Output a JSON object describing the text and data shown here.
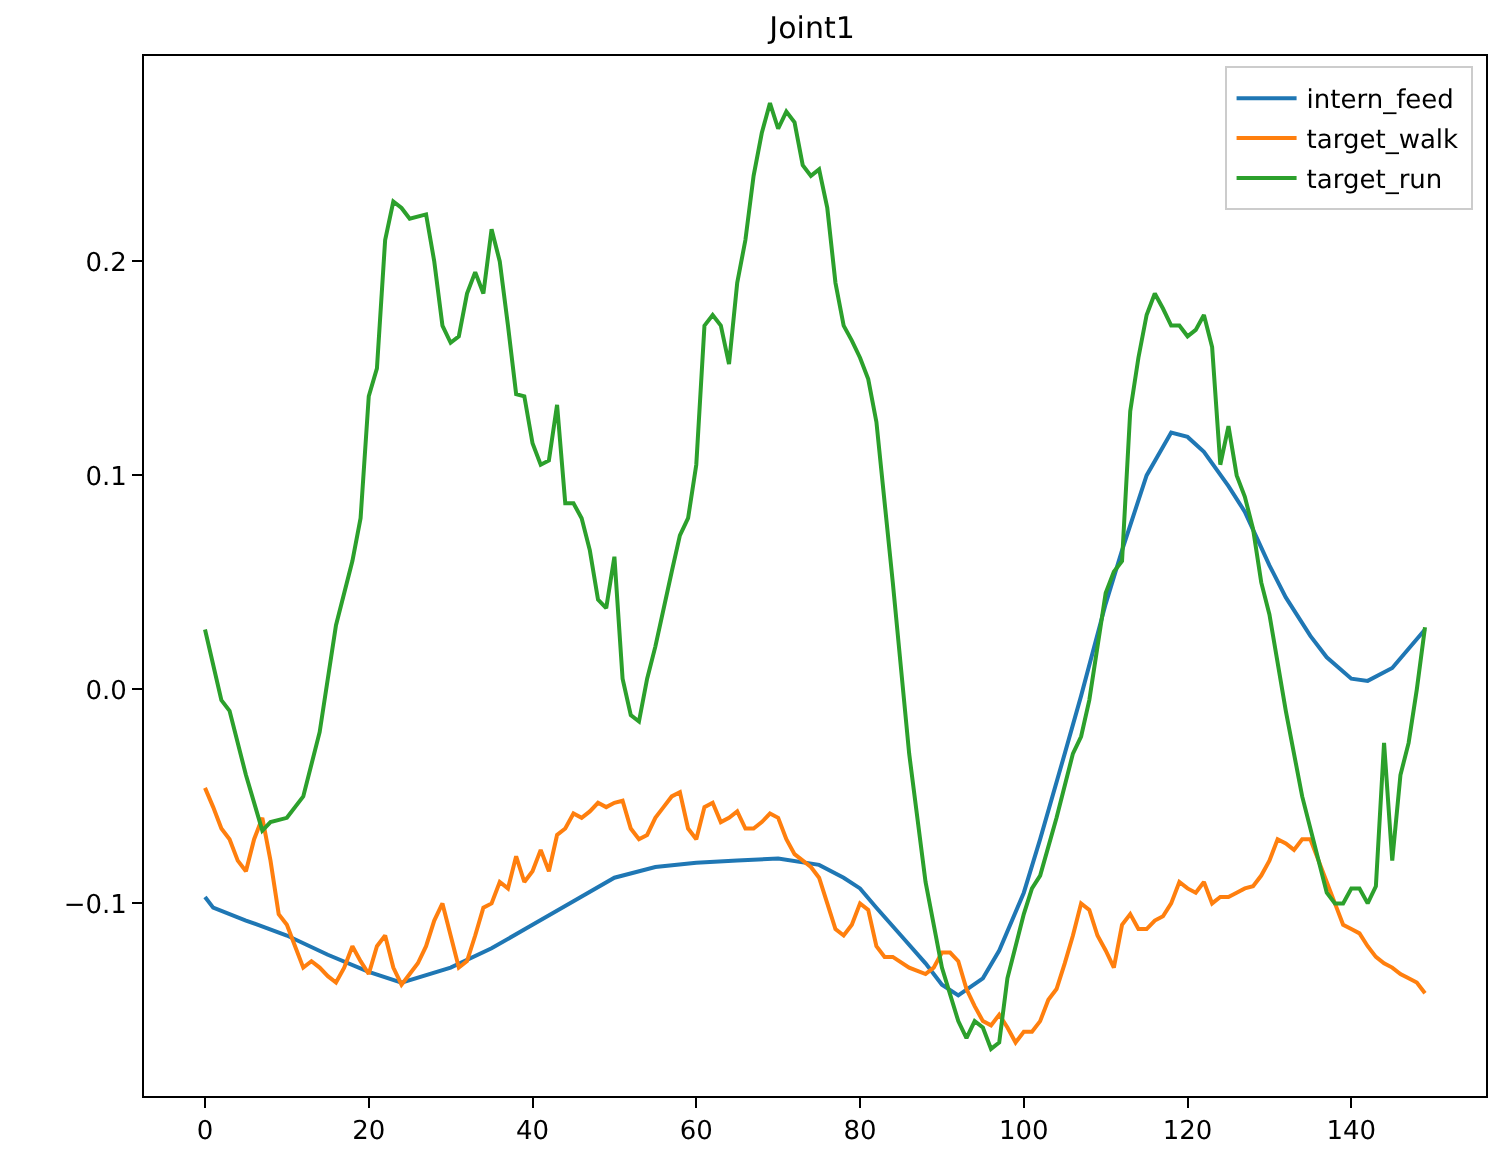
{
  "chart_data": {
    "type": "line",
    "title": "Joint1",
    "xlim": [
      -7.45,
      156.45
    ],
    "ylim": [
      -0.19,
      0.296
    ],
    "xticks": [
      0,
      20,
      40,
      60,
      80,
      100,
      120,
      140
    ],
    "yticks": [
      {
        "value": -0.1,
        "label": "−0.1"
      },
      {
        "value": 0.0,
        "label": "0.0"
      },
      {
        "value": 0.1,
        "label": "0.1"
      },
      {
        "value": 0.2,
        "label": "0.2"
      }
    ],
    "legend": "top right",
    "marker": "none",
    "line_style": "solid",
    "series": [
      {
        "name": "intern_feed",
        "color": "#1f77b4",
        "x": [
          0,
          1,
          5,
          10,
          15,
          20,
          24,
          30,
          35,
          40,
          45,
          50,
          55,
          60,
          65,
          70,
          75,
          78,
          80,
          82,
          85,
          88,
          90,
          92,
          95,
          97,
          100,
          102,
          105,
          107,
          110,
          112,
          115,
          118,
          120,
          122,
          125,
          127,
          130,
          132,
          135,
          137,
          140,
          142,
          145,
          149
        ],
        "values": [
          -0.097,
          -0.102,
          -0.108,
          -0.115,
          -0.124,
          -0.132,
          -0.137,
          -0.13,
          -0.121,
          -0.11,
          -0.099,
          -0.088,
          -0.083,
          -0.081,
          -0.08,
          -0.079,
          -0.082,
          -0.088,
          -0.093,
          -0.102,
          -0.115,
          -0.128,
          -0.138,
          -0.143,
          -0.135,
          -0.122,
          -0.095,
          -0.07,
          -0.03,
          -0.003,
          0.04,
          0.065,
          0.1,
          0.12,
          0.118,
          0.111,
          0.095,
          0.083,
          0.058,
          0.043,
          0.025,
          0.015,
          0.005,
          0.004,
          0.01,
          0.028
        ]
      },
      {
        "name": "target_walk",
        "color": "#ff7f0e",
        "x": [
          0,
          1,
          2,
          3,
          4,
          5,
          6,
          7,
          8,
          9,
          10,
          11,
          12,
          13,
          14,
          15,
          16,
          17,
          18,
          19,
          20,
          21,
          22,
          23,
          24,
          25,
          26,
          27,
          28,
          29,
          30,
          31,
          32,
          33,
          34,
          35,
          36,
          37,
          38,
          39,
          40,
          41,
          42,
          43,
          44,
          45,
          46,
          47,
          48,
          49,
          50,
          51,
          52,
          53,
          54,
          55,
          56,
          57,
          58,
          59,
          60,
          61,
          62,
          63,
          64,
          65,
          66,
          67,
          68,
          69,
          70,
          71,
          72,
          74,
          75,
          76,
          77,
          78,
          79,
          80,
          81,
          82,
          83,
          84,
          86,
          88,
          89,
          90,
          91,
          92,
          93,
          94,
          95,
          96,
          97,
          98,
          99,
          100,
          101,
          102,
          103,
          104,
          105,
          106,
          107,
          108,
          109,
          110,
          111,
          112,
          113,
          114,
          115,
          116,
          117,
          118,
          119,
          120,
          121,
          122,
          123,
          124,
          125,
          126,
          127,
          128,
          129,
          130,
          131,
          132,
          133,
          134,
          135,
          136,
          137,
          138,
          139,
          140,
          141,
          142,
          143,
          144,
          145,
          146,
          147,
          148,
          149
        ],
        "values": [
          -0.046,
          -0.055,
          -0.065,
          -0.07,
          -0.08,
          -0.085,
          -0.07,
          -0.06,
          -0.08,
          -0.105,
          -0.11,
          -0.12,
          -0.13,
          -0.127,
          -0.13,
          -0.134,
          -0.137,
          -0.13,
          -0.12,
          -0.127,
          -0.133,
          -0.12,
          -0.115,
          -0.13,
          -0.138,
          -0.133,
          -0.128,
          -0.12,
          -0.108,
          -0.1,
          -0.115,
          -0.13,
          -0.127,
          -0.115,
          -0.102,
          -0.1,
          -0.09,
          -0.093,
          -0.078,
          -0.09,
          -0.085,
          -0.075,
          -0.085,
          -0.068,
          -0.065,
          -0.058,
          -0.06,
          -0.057,
          -0.053,
          -0.055,
          -0.053,
          -0.052,
          -0.065,
          -0.07,
          -0.068,
          -0.06,
          -0.055,
          -0.05,
          -0.048,
          -0.065,
          -0.07,
          -0.055,
          -0.053,
          -0.062,
          -0.06,
          -0.057,
          -0.065,
          -0.065,
          -0.062,
          -0.058,
          -0.06,
          -0.07,
          -0.077,
          -0.083,
          -0.088,
          -0.1,
          -0.112,
          -0.115,
          -0.11,
          -0.1,
          -0.103,
          -0.12,
          -0.125,
          -0.125,
          -0.13,
          -0.133,
          -0.13,
          -0.123,
          -0.123,
          -0.127,
          -0.14,
          -0.148,
          -0.155,
          -0.157,
          -0.152,
          -0.158,
          -0.165,
          -0.16,
          -0.16,
          -0.155,
          -0.145,
          -0.14,
          -0.128,
          -0.115,
          -0.1,
          -0.103,
          -0.115,
          -0.122,
          -0.13,
          -0.11,
          -0.105,
          -0.112,
          -0.112,
          -0.108,
          -0.106,
          -0.1,
          -0.09,
          -0.093,
          -0.095,
          -0.09,
          -0.1,
          -0.097,
          -0.097,
          -0.095,
          -0.093,
          -0.092,
          -0.087,
          -0.08,
          -0.07,
          -0.072,
          -0.075,
          -0.07,
          -0.07,
          -0.08,
          -0.09,
          -0.1,
          -0.11,
          -0.112,
          -0.114,
          -0.12,
          -0.125,
          -0.128,
          -0.13,
          -0.133,
          -0.135,
          -0.137,
          -0.142
        ]
      },
      {
        "name": "target_run",
        "color": "#2ca02c",
        "x": [
          0,
          2,
          3,
          5,
          7,
          8,
          10,
          12,
          14,
          16,
          18,
          19,
          20,
          21,
          22,
          23,
          24,
          25,
          27,
          28,
          29,
          30,
          31,
          32,
          33,
          34,
          35,
          36,
          37,
          38,
          39,
          40,
          41,
          42,
          43,
          44,
          45,
          46,
          47,
          48,
          49,
          50,
          51,
          52,
          53,
          54,
          55,
          57,
          58,
          59,
          60,
          61,
          62,
          63,
          64,
          65,
          66,
          67,
          68,
          69,
          70,
          71,
          72,
          73,
          74,
          75,
          76,
          77,
          78,
          79,
          80,
          81,
          82,
          84,
          86,
          88,
          90,
          92,
          93,
          94,
          95,
          96,
          97,
          98,
          100,
          101,
          102,
          104,
          106,
          107,
          108,
          109,
          110,
          111,
          112,
          113,
          114,
          115,
          116,
          117,
          118,
          119,
          120,
          121,
          122,
          123,
          124,
          125,
          126,
          127,
          128,
          129,
          130,
          132,
          134,
          136,
          137,
          138,
          139,
          140,
          141,
          142,
          143,
          144,
          145,
          146,
          147,
          148,
          149
        ],
        "values": [
          0.028,
          -0.005,
          -0.01,
          -0.04,
          -0.066,
          -0.062,
          -0.06,
          -0.05,
          -0.02,
          0.03,
          0.06,
          0.08,
          0.137,
          0.15,
          0.21,
          0.228,
          0.225,
          0.22,
          0.222,
          0.2,
          0.17,
          0.162,
          0.165,
          0.185,
          0.195,
          0.185,
          0.215,
          0.2,
          0.17,
          0.138,
          0.137,
          0.115,
          0.105,
          0.107,
          0.133,
          0.087,
          0.087,
          0.08,
          0.065,
          0.042,
          0.038,
          0.062,
          0.005,
          -0.012,
          -0.015,
          0.005,
          0.02,
          0.055,
          0.072,
          0.08,
          0.105,
          0.17,
          0.175,
          0.17,
          0.152,
          0.19,
          0.21,
          0.24,
          0.26,
          0.274,
          0.262,
          0.27,
          0.265,
          0.245,
          0.24,
          0.243,
          0.225,
          0.19,
          0.17,
          0.163,
          0.155,
          0.145,
          0.125,
          0.05,
          -0.03,
          -0.09,
          -0.13,
          -0.155,
          -0.163,
          -0.155,
          -0.158,
          -0.168,
          -0.165,
          -0.135,
          -0.105,
          -0.093,
          -0.087,
          -0.06,
          -0.03,
          -0.022,
          -0.005,
          0.02,
          0.045,
          0.055,
          0.06,
          0.13,
          0.155,
          0.175,
          0.185,
          0.178,
          0.17,
          0.17,
          0.165,
          0.168,
          0.175,
          0.16,
          0.105,
          0.123,
          0.1,
          0.09,
          0.075,
          0.05,
          0.035,
          -0.01,
          -0.05,
          -0.08,
          -0.095,
          -0.1,
          -0.1,
          -0.093,
          -0.093,
          -0.1,
          -0.092,
          -0.025,
          -0.08,
          -0.04,
          -0.025,
          0.0,
          0.029
        ]
      }
    ]
  }
}
